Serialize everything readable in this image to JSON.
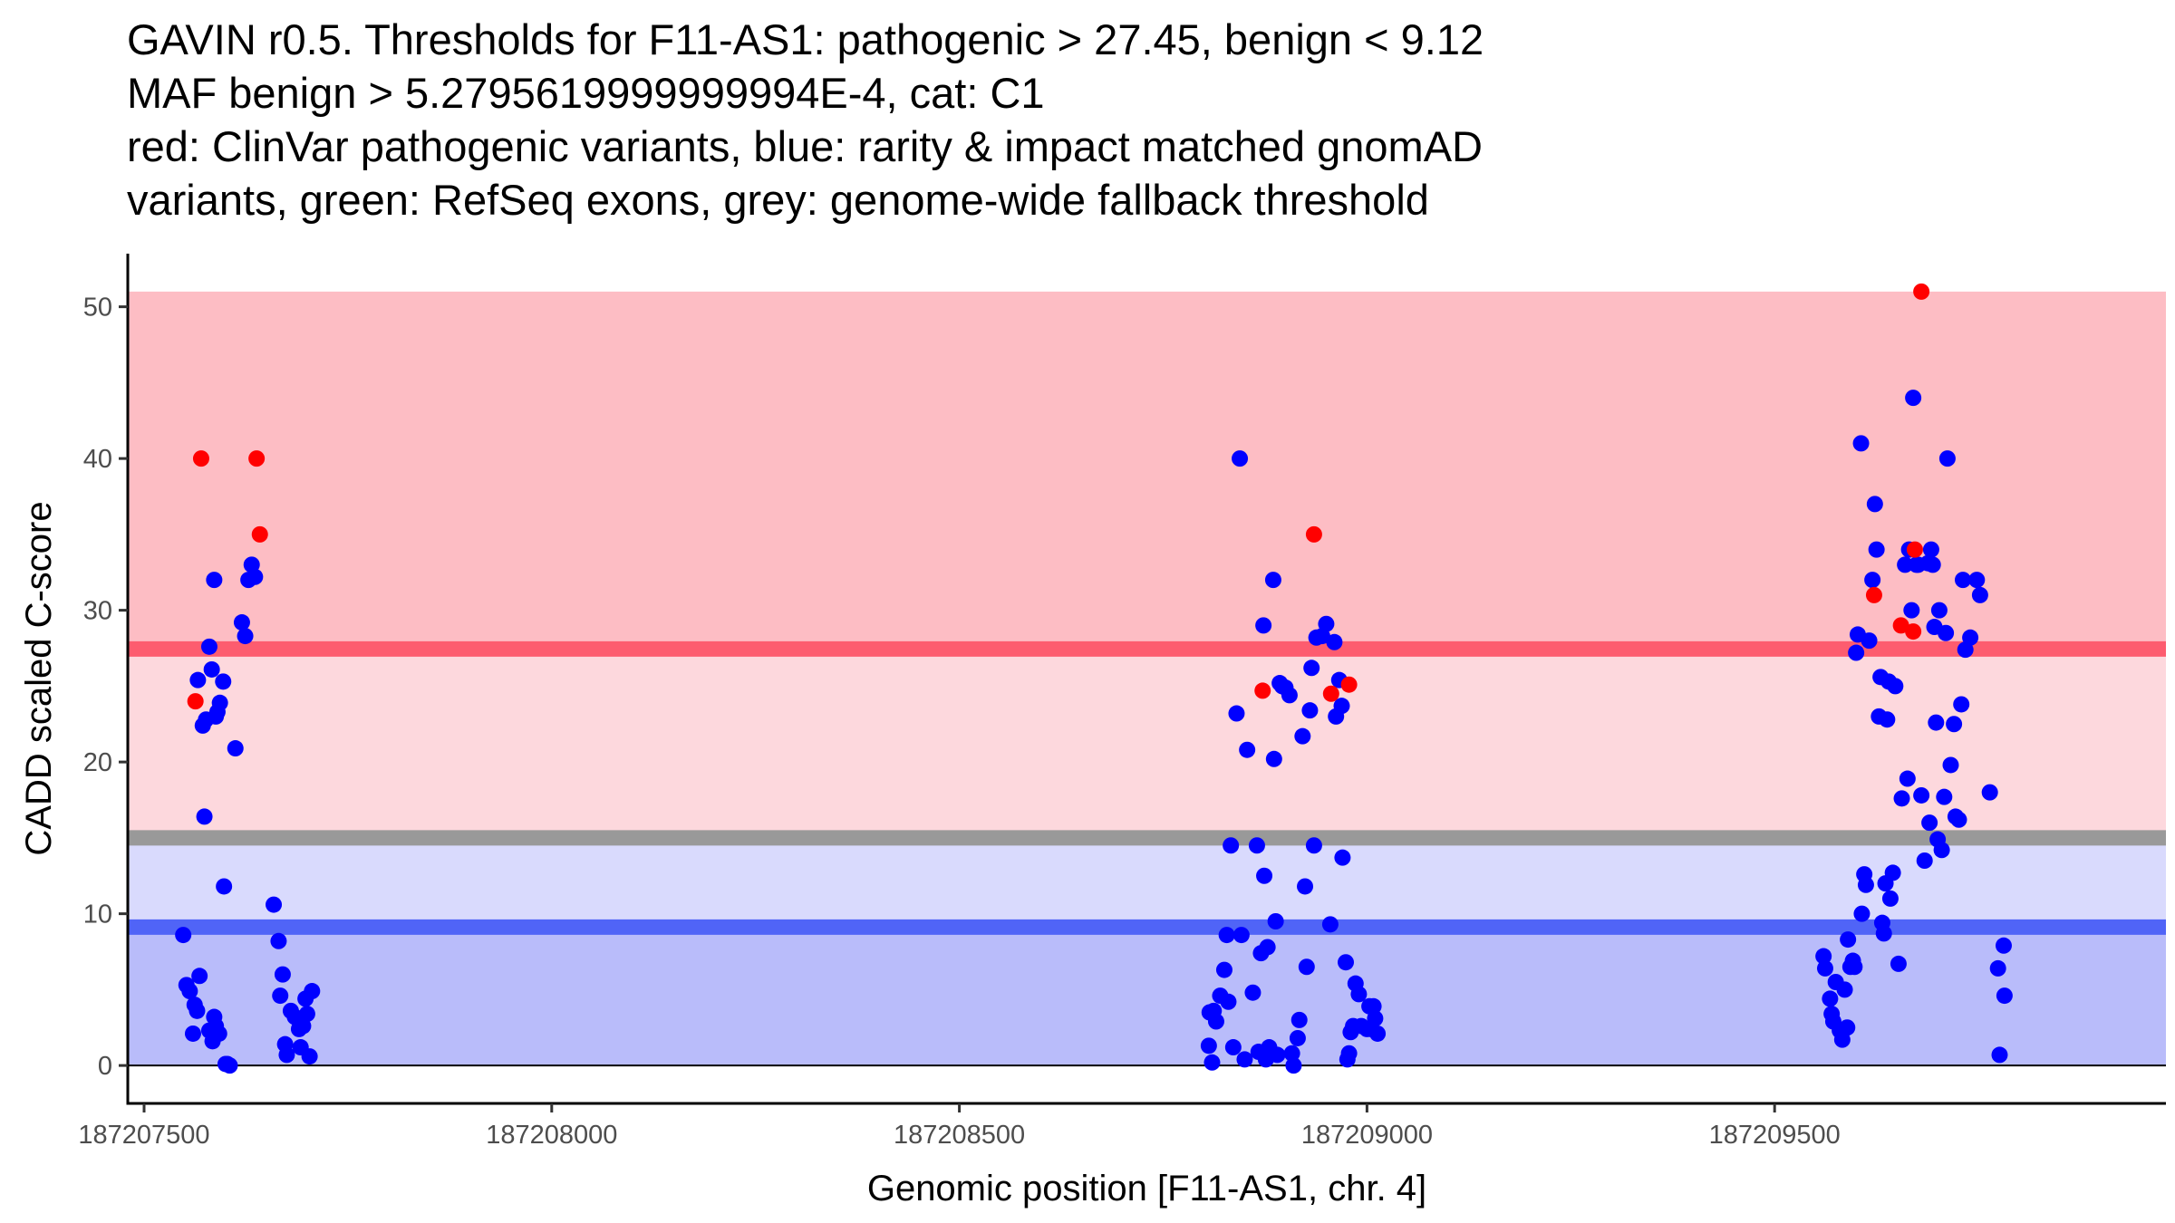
{
  "chart_data": {
    "type": "scatter",
    "title_lines": [
      "GAVIN r0.5. Thresholds for F11-AS1: pathogenic > 27.45, benign < 9.12",
      "MAF benign > 5.2795619999999994E-4, cat: C1",
      "red: ClinVar pathogenic variants, blue: rarity & impact matched gnomAD",
      "variants, green: RefSeq exons, grey: genome-wide fallback threshold"
    ],
    "xlabel": "Genomic position [F11-AS1, chr. 4]",
    "ylabel": "CADD scaled C-score",
    "xlim": [
      187207480,
      187209980
    ],
    "ylim": [
      -2.5,
      53.5
    ],
    "xticks": [
      187207500,
      187208000,
      187208500,
      187209000,
      187209500
    ],
    "yticks": [
      0,
      10,
      20,
      30,
      40,
      50
    ],
    "thresholds": {
      "pathogenic": 27.45,
      "benign": 9.12,
      "genome_wide_fallback": 15
    },
    "bands": [
      {
        "name": "pathogenic-region",
        "from": 27.45,
        "to": 51,
        "color": "#fdbdc4"
      },
      {
        "name": "intermediate-pathogenic-region",
        "from": 15,
        "to": 27.45,
        "color": "#fdd8dd"
      },
      {
        "name": "intermediate-benign-region",
        "from": 9.12,
        "to": 15,
        "color": "#d9dafd"
      },
      {
        "name": "benign-region",
        "from": 0,
        "to": 9.12,
        "color": "#b9bcfa"
      }
    ],
    "threshold_colors": {
      "pathogenic": "#fd5c6f",
      "benign": "#5064f7",
      "genome_wide_fallback": "#999999"
    },
    "colors": {
      "pathogenic": "#ff0000",
      "population": "#0000ff"
    },
    "series": [
      {
        "name": "ClinVar pathogenic variants",
        "color": "#ff0000",
        "points": [
          [
            187207563,
            24.0
          ],
          [
            187207570,
            40.0
          ],
          [
            187207638,
            40.0
          ],
          [
            187207642,
            35.0
          ],
          [
            187208872,
            24.7
          ],
          [
            187208935,
            35.0
          ],
          [
            187208956,
            24.5
          ],
          [
            187208978,
            25.1
          ],
          [
            187209622,
            31.0
          ],
          [
            187209655,
            29.0
          ],
          [
            187209670,
            28.6
          ],
          [
            187209672,
            34.0
          ],
          [
            187209680,
            51.0
          ]
        ]
      },
      {
        "name": "rarity & impact matched gnomAD variants",
        "color": "#0000ff",
        "points": [
          [
            187207548,
            8.6
          ],
          [
            187207552,
            5.3
          ],
          [
            187207556,
            4.9
          ],
          [
            187207560,
            2.1
          ],
          [
            187207562,
            4.0
          ],
          [
            187207565,
            3.6
          ],
          [
            187207568,
            5.9
          ],
          [
            187207574,
            16.4
          ],
          [
            187207566,
            25.4
          ],
          [
            187207572,
            22.4
          ],
          [
            187207576,
            22.8
          ],
          [
            187207580,
            27.6
          ],
          [
            187207583,
            26.1
          ],
          [
            187207586,
            32.0
          ],
          [
            187207588,
            23.0
          ],
          [
            187207590,
            23.3
          ],
          [
            187207593,
            23.9
          ],
          [
            187207597,
            25.3
          ],
          [
            187207580,
            2.3
          ],
          [
            187207584,
            1.6
          ],
          [
            187207586,
            3.2
          ],
          [
            187207588,
            2.6
          ],
          [
            187207592,
            2.1
          ],
          [
            187207598,
            11.8
          ],
          [
            187207602,
            0.1
          ],
          [
            187207605,
            0.0
          ],
          [
            187207600,
            0.1
          ],
          [
            187207612,
            20.9
          ],
          [
            187207620,
            29.2
          ],
          [
            187207624,
            28.3
          ],
          [
            187207628,
            32.0
          ],
          [
            187207632,
            33.0
          ],
          [
            187207636,
            32.2
          ],
          [
            187207659,
            10.6
          ],
          [
            187207665,
            8.2
          ],
          [
            187207667,
            4.6
          ],
          [
            187207670,
            6.0
          ],
          [
            187207673,
            1.4
          ],
          [
            187207675,
            0.7
          ],
          [
            187207680,
            3.6
          ],
          [
            187207685,
            3.2
          ],
          [
            187207690,
            2.4
          ],
          [
            187207692,
            1.2
          ],
          [
            187207695,
            2.6
          ],
          [
            187207698,
            4.4
          ],
          [
            187207700,
            3.4
          ],
          [
            187207703,
            0.6
          ],
          [
            187207706,
            4.9
          ],
          [
            187208806,
            1.3
          ],
          [
            187208807,
            3.5
          ],
          [
            187208810,
            0.2
          ],
          [
            187208812,
            3.6
          ],
          [
            187208815,
            2.9
          ],
          [
            187208820,
            4.6
          ],
          [
            187208825,
            6.3
          ],
          [
            187208828,
            8.6
          ],
          [
            187208830,
            4.2
          ],
          [
            187208833,
            14.5
          ],
          [
            187208836,
            1.2
          ],
          [
            187208840,
            23.2
          ],
          [
            187208844,
            40.0
          ],
          [
            187208846,
            8.6
          ],
          [
            187208850,
            0.4
          ],
          [
            187208853,
            20.8
          ],
          [
            187208860,
            4.8
          ],
          [
            187208865,
            14.5
          ],
          [
            187208867,
            0.9
          ],
          [
            187208870,
            7.4
          ],
          [
            187208873,
            29.0
          ],
          [
            187208874,
            12.5
          ],
          [
            187208876,
            0.4
          ],
          [
            187208878,
            7.8
          ],
          [
            187208880,
            1.2
          ],
          [
            187208885,
            32.0
          ],
          [
            187208886,
            20.2
          ],
          [
            187208888,
            9.5
          ],
          [
            187208890,
            0.7
          ],
          [
            187208893,
            25.2
          ],
          [
            187208896,
            25.0
          ],
          [
            187208900,
            24.9
          ],
          [
            187208905,
            24.4
          ],
          [
            187208908,
            0.8
          ],
          [
            187208910,
            0.0
          ],
          [
            187208915,
            1.8
          ],
          [
            187208917,
            3.0
          ],
          [
            187208921,
            21.7
          ],
          [
            187208924,
            11.8
          ],
          [
            187208926,
            6.5
          ],
          [
            187208930,
            23.4
          ],
          [
            187208932,
            26.2
          ],
          [
            187208935,
            14.5
          ],
          [
            187208938,
            28.2
          ],
          [
            187208945,
            28.3
          ],
          [
            187208950,
            29.1
          ],
          [
            187208955,
            9.3
          ],
          [
            187208960,
            27.9
          ],
          [
            187208962,
            23.0
          ],
          [
            187208966,
            25.4
          ],
          [
            187208969,
            23.7
          ],
          [
            187208970,
            13.7
          ],
          [
            187208974,
            6.8
          ],
          [
            187208976,
            0.4
          ],
          [
            187208978,
            0.8
          ],
          [
            187208980,
            2.2
          ],
          [
            187208983,
            2.6
          ],
          [
            187208986,
            5.4
          ],
          [
            187208990,
            4.7
          ],
          [
            187208993,
            2.6
          ],
          [
            187209000,
            2.4
          ],
          [
            187209003,
            3.9
          ],
          [
            187209005,
            2.4
          ],
          [
            187209008,
            3.9
          ],
          [
            187209010,
            3.1
          ],
          [
            187209013,
            2.1
          ],
          [
            187209560,
            7.2
          ],
          [
            187209562,
            6.4
          ],
          [
            187209568,
            4.4
          ],
          [
            187209570,
            3.4
          ],
          [
            187209572,
            2.9
          ],
          [
            187209575,
            5.5
          ],
          [
            187209580,
            2.3
          ],
          [
            187209583,
            1.7
          ],
          [
            187209586,
            5.0
          ],
          [
            187209589,
            2.5
          ],
          [
            187209590,
            8.3
          ],
          [
            187209593,
            6.5
          ],
          [
            187209596,
            6.9
          ],
          [
            187209598,
            6.5
          ],
          [
            187209600,
            27.2
          ],
          [
            187209602,
            28.4
          ],
          [
            187209606,
            41.0
          ],
          [
            187209607,
            10.0
          ],
          [
            187209610,
            12.6
          ],
          [
            187209612,
            11.9
          ],
          [
            187209616,
            28.0
          ],
          [
            187209620,
            32.0
          ],
          [
            187209623,
            37.0
          ],
          [
            187209625,
            34.0
          ],
          [
            187209628,
            23.0
          ],
          [
            187209630,
            25.6
          ],
          [
            187209632,
            9.4
          ],
          [
            187209634,
            8.7
          ],
          [
            187209636,
            12.0
          ],
          [
            187209638,
            22.8
          ],
          [
            187209640,
            25.3
          ],
          [
            187209642,
            11.0
          ],
          [
            187209645,
            12.7
          ],
          [
            187209648,
            25.0
          ],
          [
            187209652,
            6.7
          ],
          [
            187209656,
            17.6
          ],
          [
            187209660,
            33.0
          ],
          [
            187209663,
            18.9
          ],
          [
            187209665,
            34.0
          ],
          [
            187209668,
            30.0
          ],
          [
            187209670,
            44.0
          ],
          [
            187209674,
            33.0
          ],
          [
            187209676,
            33.0
          ],
          [
            187209680,
            17.8
          ],
          [
            187209684,
            13.5
          ],
          [
            187209688,
            33.1
          ],
          [
            187209690,
            16.0
          ],
          [
            187209692,
            34.0
          ],
          [
            187209694,
            33.0
          ],
          [
            187209696,
            28.9
          ],
          [
            187209698,
            22.6
          ],
          [
            187209700,
            14.9
          ],
          [
            187209702,
            30.0
          ],
          [
            187209705,
            14.2
          ],
          [
            187209708,
            17.7
          ],
          [
            187209710,
            28.5
          ],
          [
            187209712,
            40.0
          ],
          [
            187209716,
            19.8
          ],
          [
            187209720,
            22.5
          ],
          [
            187209722,
            16.4
          ],
          [
            187209726,
            16.2
          ],
          [
            187209729,
            23.8
          ],
          [
            187209731,
            32.0
          ],
          [
            187209734,
            27.4
          ],
          [
            187209740,
            28.2
          ],
          [
            187209748,
            32.0
          ],
          [
            187209752,
            31.0
          ],
          [
            187209764,
            18.0
          ],
          [
            187209774,
            6.4
          ],
          [
            187209776,
            0.7
          ],
          [
            187209781,
            7.9
          ],
          [
            187209782,
            4.6
          ]
        ]
      }
    ]
  }
}
